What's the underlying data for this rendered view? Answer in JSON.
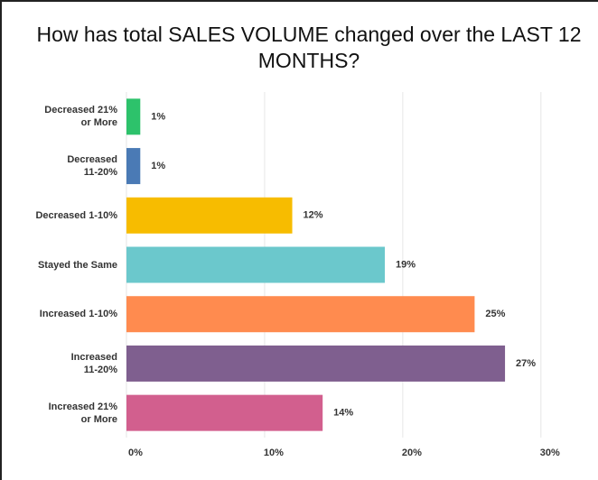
{
  "chart_data": {
    "type": "bar",
    "orientation": "horizontal",
    "title": "How has total SALES VOLUME changed over the LAST 12 MONTHS?",
    "categories": [
      "Decreased 21%\nor More",
      "Decreased\n11-20%",
      "Decreased 1-10%",
      "Stayed the Same",
      "Increased 1-10%",
      "Increased\n11-20%",
      "Increased 21%\nor More"
    ],
    "values": [
      1.0,
      1.0,
      12.0,
      18.7,
      25.2,
      27.4,
      14.2
    ],
    "value_labels": [
      "1%",
      "1%",
      "12%",
      "19%",
      "25%",
      "27%",
      "14%"
    ],
    "colors": [
      "#2dc26b",
      "#4a7ab5",
      "#f7bc00",
      "#6bc8cc",
      "#ff8b4f",
      "#7f5f8f",
      "#d25f8e"
    ],
    "xlim": [
      0,
      34
    ],
    "xticks": [
      {
        "value": 0,
        "label": "0%"
      },
      {
        "value": 10,
        "label": "10%"
      },
      {
        "value": 20,
        "label": "20%"
      },
      {
        "value": 30,
        "label": "30%"
      }
    ],
    "grid": true
  }
}
